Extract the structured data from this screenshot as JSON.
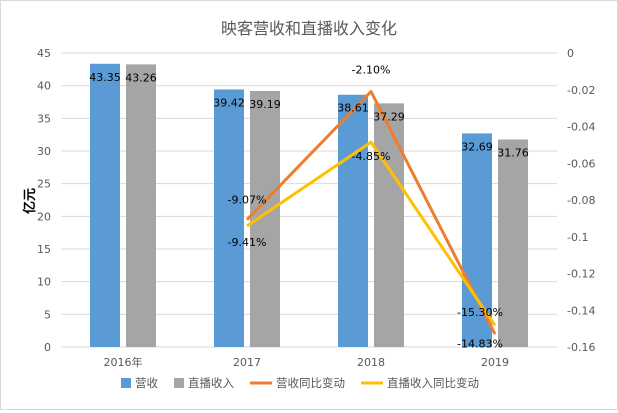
{
  "chart_data": {
    "type": "bar",
    "title": "映客营收和直播收入变化",
    "ylabel": "亿元",
    "categories": [
      "2016年",
      "2017",
      "2018",
      "2019"
    ],
    "ylim": [
      0,
      45
    ],
    "yticks": [
      0,
      5,
      10,
      15,
      20,
      25,
      30,
      35,
      40,
      45
    ],
    "y2lim": [
      -0.16,
      0
    ],
    "y2ticks": [
      -0.16,
      -0.14,
      -0.12,
      -0.1,
      -0.08,
      -0.06,
      -0.04,
      -0.02,
      0
    ],
    "y2tick_labels": [
      "-0.16",
      "-0.14",
      "-0.12",
      "-0.1",
      "-0.08",
      "-0.06",
      "-0.04",
      "-0.02",
      "0"
    ],
    "grid": true,
    "legend_position": "bottom",
    "series": [
      {
        "name": "营收",
        "kind": "bar",
        "axis": "left",
        "color": "#5b9bd5",
        "values": [
          43.35,
          39.42,
          38.61,
          32.69
        ],
        "labels": [
          "43.35",
          "39.42",
          "38.61",
          "32.69"
        ]
      },
      {
        "name": "直播收入",
        "kind": "bar",
        "axis": "left",
        "color": "#a5a5a5",
        "values": [
          43.26,
          39.19,
          37.29,
          31.76
        ],
        "labels": [
          "43.26",
          "39.19",
          "37.29",
          "31.76"
        ]
      },
      {
        "name": "营收同比变动",
        "kind": "line",
        "axis": "right",
        "color": "#ed7d31",
        "values": [
          null,
          -0.0907,
          -0.021,
          -0.153
        ],
        "labels": [
          "",
          "-9.07%",
          "-2.10%",
          "-15.30%"
        ]
      },
      {
        "name": "直播收入同比变动",
        "kind": "line",
        "axis": "right",
        "color": "#ffc000",
        "values": [
          null,
          -0.0941,
          -0.0485,
          -0.1483
        ],
        "labels": [
          "",
          "-9.41%",
          "-4.85%",
          "-14.83%"
        ]
      }
    ]
  }
}
